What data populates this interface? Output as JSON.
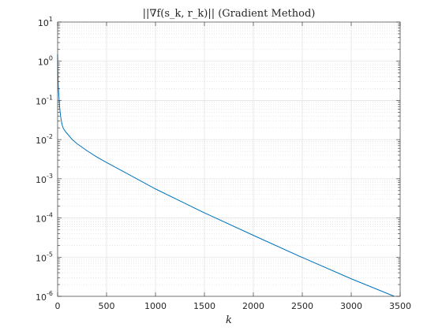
{
  "chart_data": {
    "type": "line",
    "title": "||∇f(s_k, r_k)|| (Gradient Method)",
    "xlabel": "k",
    "ylabel": "",
    "xlim": [
      0,
      3500
    ],
    "ylim": [
      1e-06,
      10
    ],
    "yscale": "log",
    "grid": true,
    "minor_grid": true,
    "x_ticks": [
      0,
      500,
      1000,
      1500,
      2000,
      2500,
      3000,
      3500
    ],
    "y_ticks": [
      {
        "value": 1e-06,
        "base": "10",
        "exp": "-6"
      },
      {
        "value": 1e-05,
        "base": "10",
        "exp": "-5"
      },
      {
        "value": 0.0001,
        "base": "10",
        "exp": "-4"
      },
      {
        "value": 0.001,
        "base": "10",
        "exp": "-3"
      },
      {
        "value": 0.01,
        "base": "10",
        "exp": "-2"
      },
      {
        "value": 0.1,
        "base": "10",
        "exp": "-1"
      },
      {
        "value": 1,
        "base": "10",
        "exp": "0"
      },
      {
        "value": 10,
        "base": "10",
        "exp": "1"
      }
    ],
    "series": [
      {
        "color": "#0072BD",
        "x": [
          0,
          2,
          5,
          10,
          15,
          20,
          30,
          40,
          50,
          60,
          80,
          100,
          150,
          200,
          300,
          400,
          500,
          700,
          1000,
          1500,
          2000,
          2500,
          3000,
          3440
        ],
        "y": [
          1.5,
          0.6,
          0.3,
          0.17,
          0.11,
          0.07,
          0.04,
          0.028,
          0.022,
          0.019,
          0.016,
          0.014,
          0.01,
          0.0078,
          0.0052,
          0.0036,
          0.0026,
          0.0014,
          0.00055,
          0.000135,
          3.6e-05,
          9.8e-06,
          2.8e-06,
          1e-06
        ]
      }
    ]
  }
}
